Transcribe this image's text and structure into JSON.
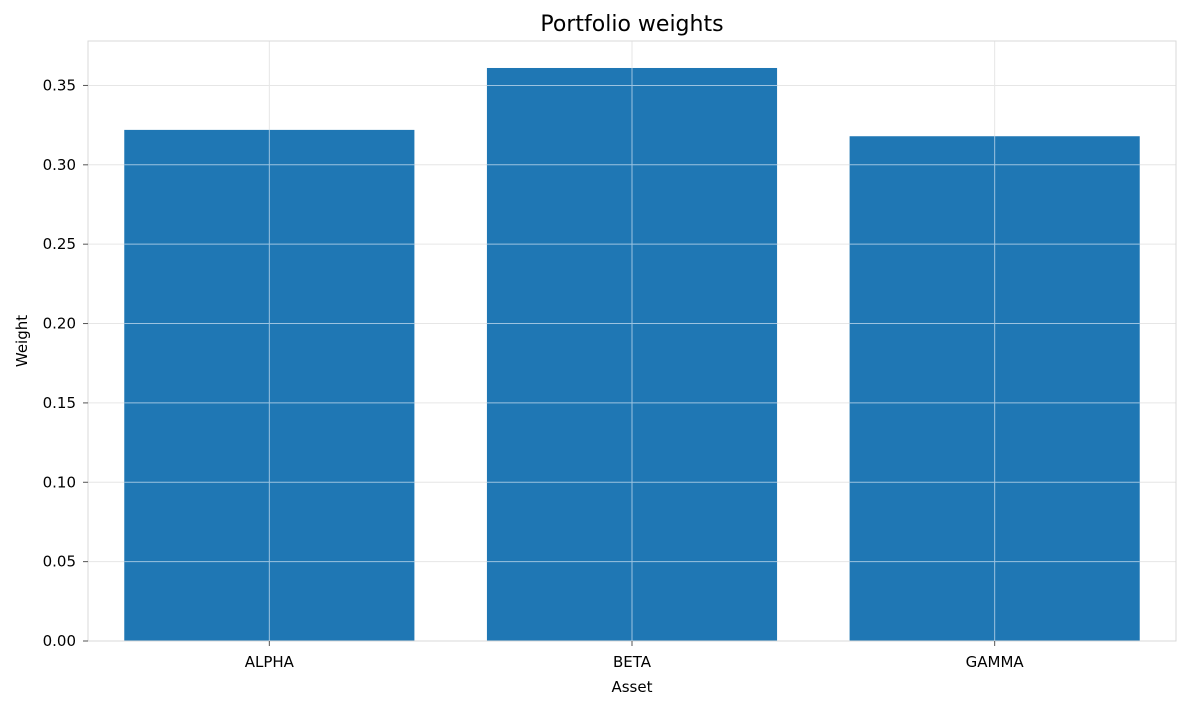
{
  "chart_data": {
    "type": "bar",
    "title": "Portfolio weights",
    "xlabel": "Asset",
    "ylabel": "Weight",
    "categories": [
      "ALPHA",
      "BETA",
      "GAMMA"
    ],
    "values": [
      0.322,
      0.361,
      0.318
    ],
    "ylim": [
      0,
      0.378
    ],
    "yticks": [
      "0.00",
      "0.05",
      "0.10",
      "0.15",
      "0.20",
      "0.25",
      "0.30",
      "0.35"
    ],
    "ytick_values": [
      0,
      0.05,
      0.1,
      0.15,
      0.2,
      0.25,
      0.3,
      0.35
    ],
    "grid": true,
    "legend": "none",
    "colors": {
      "bar": "#1f77b4",
      "grid": "#e6e6e6",
      "spine": "#d9d9d9",
      "grid_over_bar": "#9cc3e0"
    }
  }
}
